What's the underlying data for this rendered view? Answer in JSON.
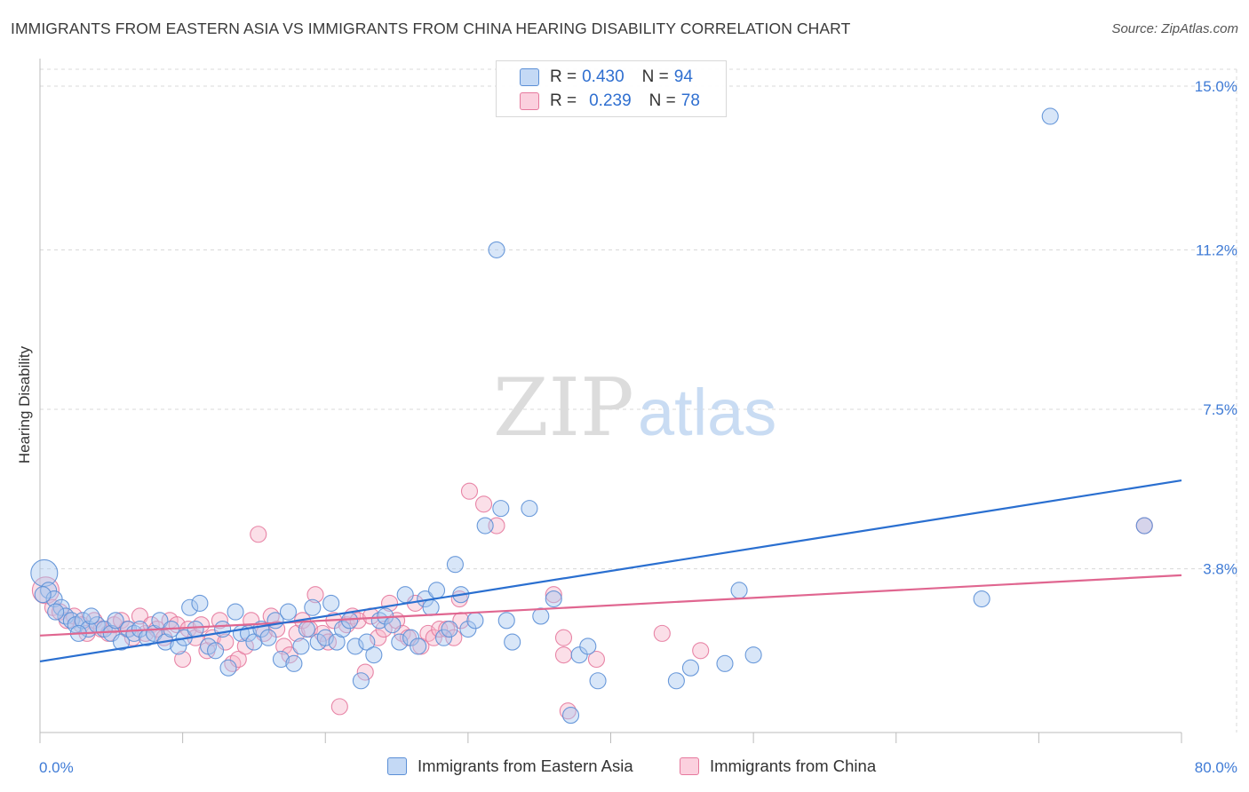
{
  "title": "IMMIGRANTS FROM EASTERN ASIA VS IMMIGRANTS FROM CHINA HEARING DISABILITY CORRELATION CHART",
  "source": "Source: ZipAtlas.com",
  "watermark": {
    "zip": "ZIP",
    "atlas": "atlas"
  },
  "legend": {
    "rows": [
      {
        "r_label": "R =",
        "r_value": "0.430",
        "n_label": "N =",
        "n_value": "94"
      },
      {
        "r_label": "R =",
        "r_value": "0.239",
        "n_label": "N =",
        "n_value": "78"
      }
    ]
  },
  "colors": {
    "blue_fill": "#a9c8f0",
    "blue_stroke": "#5b8fd6",
    "blue_line": "#2a6fd0",
    "pink_fill": "#f7b8cc",
    "pink_stroke": "#e6799d",
    "pink_line": "#e06690",
    "grid": "#d8d8d8",
    "axis_text": "#3f7bd6"
  },
  "chart_data": {
    "type": "scatter",
    "title": "IMMIGRANTS FROM EASTERN ASIA VS IMMIGRANTS FROM CHINA HEARING DISABILITY CORRELATION CHART",
    "xlabel": "",
    "ylabel": "Hearing Disability",
    "xlim": [
      0,
      80
    ],
    "ylim": [
      0,
      15.0
    ],
    "x_tick_labels": [
      "0.0%",
      "80.0%"
    ],
    "y_ticks": [
      3.8,
      7.5,
      11.2,
      15.0
    ],
    "y_tick_labels": [
      "3.8%",
      "7.5%",
      "11.2%",
      "15.0%"
    ],
    "grid": true,
    "legend_position": "top-center",
    "series": [
      {
        "name": "Immigrants from Eastern Asia",
        "R": 0.43,
        "N": 94,
        "trend": {
          "x": [
            0,
            80
          ],
          "y": [
            1.65,
            5.85
          ]
        },
        "points": [
          [
            0.3,
            3.7
          ],
          [
            0.6,
            3.3
          ],
          [
            1.0,
            3.1
          ],
          [
            1.5,
            2.9
          ],
          [
            1.8,
            2.7
          ],
          [
            2.2,
            2.6
          ],
          [
            2.5,
            2.5
          ],
          [
            3.0,
            2.6
          ],
          [
            3.4,
            2.4
          ],
          [
            4.0,
            2.5
          ],
          [
            4.5,
            2.4
          ],
          [
            5.0,
            2.3
          ],
          [
            5.3,
            2.6
          ],
          [
            5.7,
            2.1
          ],
          [
            6.2,
            2.4
          ],
          [
            6.6,
            2.3
          ],
          [
            7.0,
            2.4
          ],
          [
            7.5,
            2.2
          ],
          [
            8.0,
            2.3
          ],
          [
            8.4,
            2.6
          ],
          [
            8.8,
            2.1
          ],
          [
            9.2,
            2.4
          ],
          [
            9.7,
            2.0
          ],
          [
            10.1,
            2.2
          ],
          [
            10.5,
            2.9
          ],
          [
            10.9,
            2.4
          ],
          [
            11.2,
            3.0
          ],
          [
            11.8,
            2.0
          ],
          [
            12.3,
            1.9
          ],
          [
            12.8,
            2.4
          ],
          [
            13.2,
            1.5
          ],
          [
            13.7,
            2.8
          ],
          [
            14.1,
            2.3
          ],
          [
            14.6,
            2.3
          ],
          [
            15.0,
            2.1
          ],
          [
            15.5,
            2.4
          ],
          [
            16.0,
            2.2
          ],
          [
            16.5,
            2.6
          ],
          [
            16.9,
            1.7
          ],
          [
            17.4,
            2.8
          ],
          [
            17.8,
            1.6
          ],
          [
            18.3,
            2.0
          ],
          [
            18.7,
            2.4
          ],
          [
            19.1,
            2.9
          ],
          [
            19.5,
            2.1
          ],
          [
            20.0,
            2.2
          ],
          [
            20.4,
            3.0
          ],
          [
            20.8,
            2.1
          ],
          [
            21.2,
            2.4
          ],
          [
            21.7,
            2.6
          ],
          [
            22.1,
            2.0
          ],
          [
            22.5,
            1.2
          ],
          [
            22.9,
            2.1
          ],
          [
            23.4,
            1.8
          ],
          [
            23.8,
            2.6
          ],
          [
            24.2,
            2.7
          ],
          [
            24.7,
            2.5
          ],
          [
            25.2,
            2.1
          ],
          [
            25.6,
            3.2
          ],
          [
            26.0,
            2.2
          ],
          [
            26.5,
            2.0
          ],
          [
            27.0,
            3.1
          ],
          [
            27.4,
            2.9
          ],
          [
            27.8,
            3.3
          ],
          [
            28.3,
            2.2
          ],
          [
            28.7,
            2.4
          ],
          [
            29.1,
            3.9
          ],
          [
            29.5,
            3.2
          ],
          [
            30.0,
            2.4
          ],
          [
            30.5,
            2.6
          ],
          [
            31.2,
            4.8
          ],
          [
            32.0,
            11.2
          ],
          [
            32.3,
            5.2
          ],
          [
            32.7,
            2.6
          ],
          [
            33.1,
            2.1
          ],
          [
            34.3,
            5.2
          ],
          [
            35.1,
            2.7
          ],
          [
            36.0,
            3.1
          ],
          [
            37.2,
            0.4
          ],
          [
            37.8,
            1.8
          ],
          [
            38.4,
            2.0
          ],
          [
            39.1,
            1.2
          ],
          [
            45.6,
            1.5
          ],
          [
            49.0,
            3.3
          ],
          [
            48.0,
            1.6
          ],
          [
            50.0,
            1.8
          ],
          [
            66.0,
            3.1
          ],
          [
            70.8,
            14.3
          ],
          [
            77.4,
            4.8
          ],
          [
            0.2,
            3.2
          ],
          [
            1.1,
            2.8
          ],
          [
            2.7,
            2.3
          ],
          [
            3.6,
            2.7
          ],
          [
            44.6,
            1.2
          ]
        ]
      },
      {
        "name": "Immigrants from China",
        "R": 0.239,
        "N": 78,
        "trend": {
          "x": [
            0,
            80
          ],
          "y": [
            2.25,
            3.65
          ]
        },
        "points": [
          [
            0.4,
            3.3
          ],
          [
            0.9,
            2.9
          ],
          [
            1.4,
            2.8
          ],
          [
            1.9,
            2.6
          ],
          [
            2.4,
            2.7
          ],
          [
            2.9,
            2.5
          ],
          [
            3.3,
            2.3
          ],
          [
            3.8,
            2.6
          ],
          [
            4.3,
            2.4
          ],
          [
            4.8,
            2.3
          ],
          [
            5.2,
            2.5
          ],
          [
            5.7,
            2.6
          ],
          [
            6.1,
            2.4
          ],
          [
            6.5,
            2.2
          ],
          [
            7.0,
            2.7
          ],
          [
            7.4,
            2.3
          ],
          [
            7.8,
            2.5
          ],
          [
            8.2,
            2.4
          ],
          [
            8.7,
            2.2
          ],
          [
            9.1,
            2.6
          ],
          [
            9.6,
            2.5
          ],
          [
            10.0,
            1.7
          ],
          [
            10.4,
            2.4
          ],
          [
            10.9,
            2.2
          ],
          [
            11.3,
            2.5
          ],
          [
            11.7,
            1.9
          ],
          [
            12.1,
            2.2
          ],
          [
            12.6,
            2.6
          ],
          [
            13.0,
            2.1
          ],
          [
            13.5,
            1.6
          ],
          [
            13.9,
            1.7
          ],
          [
            14.4,
            2.0
          ],
          [
            14.8,
            2.6
          ],
          [
            15.3,
            4.6
          ],
          [
            15.7,
            2.3
          ],
          [
            16.2,
            2.7
          ],
          [
            16.6,
            2.4
          ],
          [
            17.1,
            2.0
          ],
          [
            17.5,
            1.8
          ],
          [
            18.0,
            2.3
          ],
          [
            18.4,
            2.6
          ],
          [
            18.9,
            2.4
          ],
          [
            19.3,
            3.2
          ],
          [
            19.8,
            2.3
          ],
          [
            20.2,
            2.1
          ],
          [
            20.6,
            2.6
          ],
          [
            21.0,
            0.6
          ],
          [
            21.5,
            2.5
          ],
          [
            21.9,
            2.7
          ],
          [
            22.3,
            2.6
          ],
          [
            22.8,
            1.4
          ],
          [
            23.2,
            2.7
          ],
          [
            23.7,
            2.2
          ],
          [
            24.1,
            2.4
          ],
          [
            24.5,
            3.0
          ],
          [
            25.0,
            2.6
          ],
          [
            25.4,
            2.3
          ],
          [
            25.8,
            2.2
          ],
          [
            26.3,
            3.0
          ],
          [
            26.7,
            2.0
          ],
          [
            27.2,
            2.3
          ],
          [
            27.6,
            2.2
          ],
          [
            28.0,
            2.4
          ],
          [
            28.5,
            2.4
          ],
          [
            29.0,
            2.2
          ],
          [
            29.5,
            2.6
          ],
          [
            30.1,
            5.6
          ],
          [
            31.1,
            5.3
          ],
          [
            32.0,
            4.8
          ],
          [
            29.4,
            3.1
          ],
          [
            36.0,
            3.2
          ],
          [
            36.7,
            2.2
          ],
          [
            37.0,
            0.5
          ],
          [
            39.0,
            1.7
          ],
          [
            36.7,
            1.8
          ],
          [
            43.6,
            2.3
          ],
          [
            46.3,
            1.9
          ],
          [
            77.4,
            4.8
          ]
        ]
      }
    ]
  }
}
